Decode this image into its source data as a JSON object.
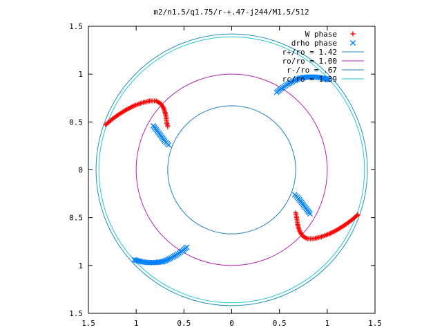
{
  "chart_data": {
    "type": "scatter",
    "title": "m2/n1.5/q1.75/r-+.47-j244/M1.5/512",
    "xlim": [
      -1.5,
      1.5
    ],
    "ylim": [
      -1.5,
      1.5
    ],
    "x_ticks": [
      {
        "value": -1.5,
        "label": "1.5"
      },
      {
        "value": -1.0,
        "label": "1"
      },
      {
        "value": -0.5,
        "label": "0.5"
      },
      {
        "value": 0.0,
        "label": "0"
      },
      {
        "value": 0.5,
        "label": "0.5"
      },
      {
        "value": 1.0,
        "label": "1"
      },
      {
        "value": 1.5,
        "label": "1.5"
      }
    ],
    "y_ticks": [
      {
        "value": 1.5,
        "label": "1.5"
      },
      {
        "value": 1.0,
        "label": "1"
      },
      {
        "value": 0.5,
        "label": "0.5"
      },
      {
        "value": 0.0,
        "label": "0"
      },
      {
        "value": -0.5,
        "label": "0.5"
      },
      {
        "value": -1.0,
        "label": "1"
      },
      {
        "value": -1.5,
        "label": "1.5"
      }
    ],
    "legend_position": "top-right",
    "series": [
      {
        "name": "W phase",
        "marker": "plus",
        "color": "#ff0000",
        "points": [
          [
            -1.32,
            0.47
          ],
          [
            -1.25,
            0.53
          ],
          [
            -1.18,
            0.58
          ],
          [
            -1.1,
            0.63
          ],
          [
            -1.02,
            0.67
          ],
          [
            -0.94,
            0.7
          ],
          [
            -0.86,
            0.72
          ],
          [
            -0.79,
            0.72
          ],
          [
            -0.74,
            0.69
          ],
          [
            -0.71,
            0.64
          ],
          [
            -0.69,
            0.57
          ],
          [
            -0.68,
            0.5
          ],
          [
            -0.67,
            0.45
          ],
          [
            1.32,
            -0.47
          ],
          [
            1.25,
            -0.53
          ],
          [
            1.18,
            -0.58
          ],
          [
            1.1,
            -0.63
          ],
          [
            1.02,
            -0.67
          ],
          [
            0.94,
            -0.7
          ],
          [
            0.86,
            -0.72
          ],
          [
            0.79,
            -0.72
          ],
          [
            0.74,
            -0.69
          ],
          [
            0.71,
            -0.64
          ],
          [
            0.69,
            -0.57
          ],
          [
            0.68,
            -0.5
          ],
          [
            0.67,
            -0.45
          ]
        ]
      },
      {
        "name": "drho phase",
        "marker": "cross",
        "color": "#0080ff",
        "points": [
          [
            -0.82,
            0.46
          ],
          [
            -0.79,
            0.42
          ],
          [
            -0.76,
            0.38
          ],
          [
            -0.73,
            0.34
          ],
          [
            -0.7,
            0.3
          ],
          [
            -0.66,
            0.26
          ],
          [
            0.82,
            -0.46
          ],
          [
            0.79,
            -0.42
          ],
          [
            0.76,
            -0.38
          ],
          [
            0.73,
            -0.34
          ],
          [
            0.7,
            -0.3
          ],
          [
            0.66,
            -0.26
          ],
          [
            0.47,
            0.81
          ],
          [
            0.52,
            0.85
          ],
          [
            0.58,
            0.89
          ],
          [
            0.65,
            0.93
          ],
          [
            0.72,
            0.96
          ],
          [
            0.8,
            0.97
          ],
          [
            0.88,
            0.97
          ],
          [
            0.95,
            0.96
          ],
          [
            1.02,
            0.94
          ],
          [
            -0.47,
            -0.81
          ],
          [
            -0.52,
            -0.85
          ],
          [
            -0.58,
            -0.89
          ],
          [
            -0.65,
            -0.93
          ],
          [
            -0.72,
            -0.96
          ],
          [
            -0.8,
            -0.97
          ],
          [
            -0.88,
            -0.97
          ],
          [
            -0.95,
            -0.96
          ],
          [
            -1.02,
            -0.94
          ]
        ]
      },
      {
        "name": "r+/ro = 1.42",
        "type": "circle",
        "radius": 1.42,
        "color": "#1e90c0"
      },
      {
        "name": "ro/ro = 1.00",
        "type": "circle",
        "radius": 1.0,
        "color": "#b020b0"
      },
      {
        "name": "r-/ro = .67",
        "type": "circle",
        "radius": 0.67,
        "color": "#1e80c0"
      },
      {
        "name": "rc/ro = 1.39",
        "type": "circle",
        "radius": 1.39,
        "color": "#20c8d0"
      }
    ]
  }
}
